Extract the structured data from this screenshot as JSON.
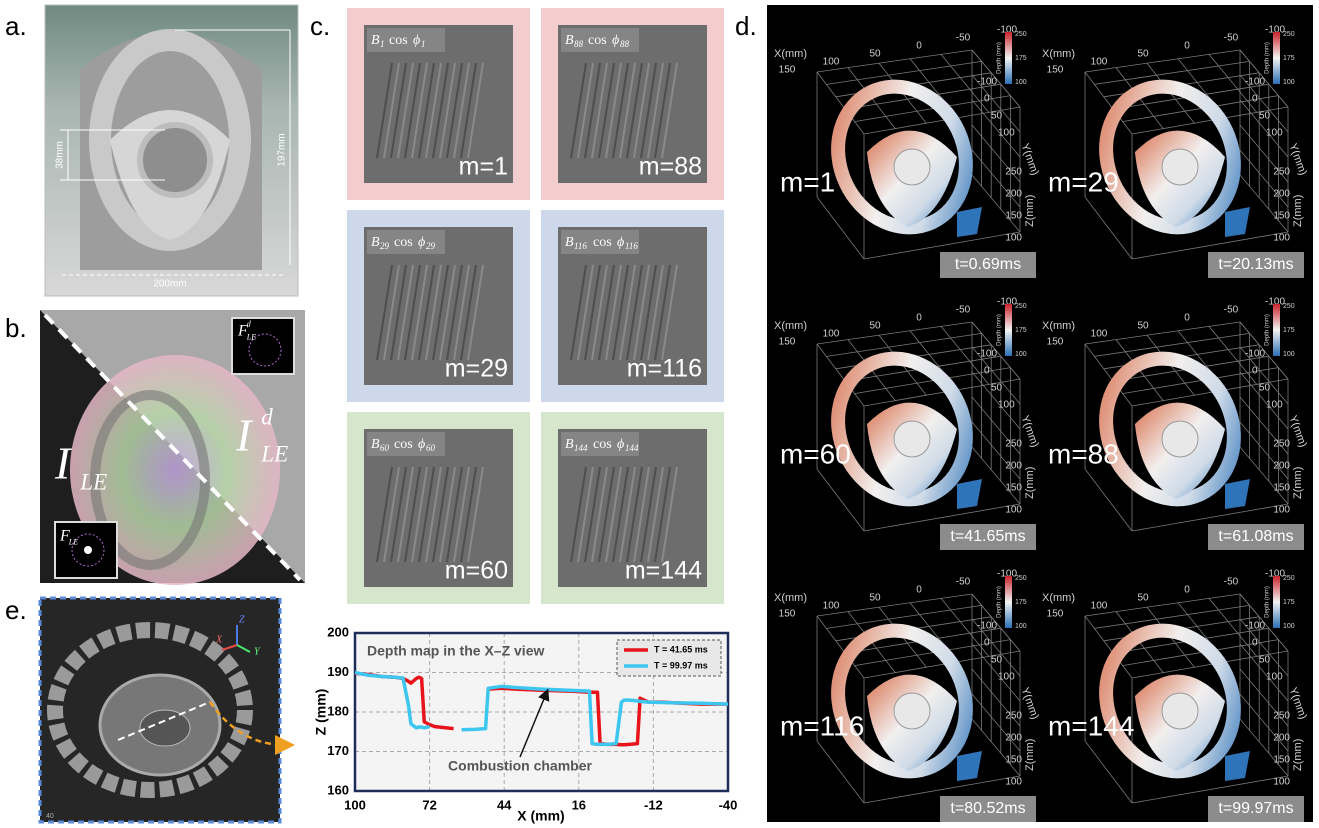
{
  "panel_labels": [
    "a.",
    "b.",
    "c.",
    "d.",
    "e."
  ],
  "a": {
    "dims": [
      "38mm",
      "197mm",
      "200mm"
    ]
  },
  "b": {
    "I_LE": {
      "base": "I",
      "sub": "LE"
    },
    "I_LE_d": {
      "base": "I",
      "sub": "LE",
      "sup": "d"
    },
    "F_LE": {
      "base": "F",
      "sub": "LE"
    },
    "F_LE_d": {
      "base": "F",
      "sub": "LE",
      "sup": "d"
    }
  },
  "c": {
    "b": "B",
    "cos": "cos",
    "phi": "ϕ",
    "tiles": [
      {
        "index": "1",
        "m": "m=1",
        "color": "#f3cdcd"
      },
      {
        "index": "88",
        "m": "m=88",
        "color": "#f3cdcd"
      },
      {
        "index": "29",
        "m": "m=29",
        "color": "#cdd8ea"
      },
      {
        "index": "116",
        "m": "m=116",
        "color": "#cdd8ea"
      },
      {
        "index": "60",
        "m": "m=60",
        "color": "#d5e6cd"
      },
      {
        "index": "144",
        "m": "m=144",
        "color": "#d5e6cd"
      }
    ]
  },
  "d": {
    "x_label": "X(mm)",
    "y_label": "Y(mm)",
    "z_label": "Z(mm)",
    "x_ticks": [
      "150",
      "100",
      "50",
      "0",
      "-50",
      "-100"
    ],
    "y_ticks": [
      "-100",
      "0",
      "50",
      "100"
    ],
    "z_ticks": [
      "250",
      "200",
      "150",
      "100"
    ],
    "colorbar": {
      "label": "Depth (mm)",
      "ticks": [
        "250",
        "175",
        "100"
      ]
    },
    "plots": [
      {
        "m": "m=1",
        "t": "t=0.69ms"
      },
      {
        "m": "m=29",
        "t": "t=20.13ms"
      },
      {
        "m": "m=60",
        "t": "t=41.65ms"
      },
      {
        "m": "m=88",
        "t": "t=61.08ms"
      },
      {
        "m": "m=116",
        "t": "t=80.52ms"
      },
      {
        "m": "m=144",
        "t": "t=99.97ms"
      }
    ]
  },
  "e": {
    "axes": [
      "Z",
      "X",
      "Y"
    ],
    "corner": "40"
  },
  "chart_data": {
    "type": "line",
    "title": "Depth map in the X–Z view",
    "x_label": "X (mm)",
    "y_label": "Z (mm)",
    "annotation": "Combustion chamber",
    "x": [
      100,
      95,
      90,
      85,
      82,
      80,
      79,
      77,
      76,
      75,
      74,
      72,
      70,
      66,
      63,
      60,
      55,
      51,
      50,
      45,
      40,
      30,
      20,
      12,
      11,
      9,
      8,
      5,
      2,
      0,
      -1,
      -3,
      -6,
      -7,
      -10,
      -15,
      -20,
      -30,
      -40
    ],
    "series": [
      {
        "name": "T = 41.65 ms",
        "color": "#e8141b",
        "values": [
          189.8,
          189.5,
          189,
          188.8,
          188.5,
          187.8,
          187.3,
          188.5,
          188.8,
          188.5,
          177.5,
          176.8,
          176.3,
          176,
          175.8,
          null,
          null,
          null,
          185.8,
          186,
          185.8,
          185.5,
          185.3,
          185,
          185,
          185,
          172,
          171.8,
          171.8,
          171.7,
          171.7,
          171.8,
          172,
          183.5,
          182.5,
          182.5,
          182.3,
          182,
          182
        ]
      },
      {
        "name": "T = 99.97 ms",
        "color": "#3cc6f0",
        "values": [
          190,
          189.3,
          189,
          188.8,
          188.6,
          182,
          177,
          176,
          176.2,
          176.2,
          176,
          176.3,
          null,
          null,
          null,
          175.5,
          175.6,
          175.8,
          186,
          186.5,
          186.2,
          185.8,
          185.5,
          185.3,
          172,
          171.8,
          171.8,
          171.8,
          172,
          182.5,
          183,
          183,
          182.8,
          182.7,
          182.5,
          182.4,
          182.3,
          182.2,
          182
        ]
      }
    ],
    "xlim": [
      100,
      -40
    ],
    "xticks": [
      100,
      72,
      44,
      16,
      -12,
      -40
    ],
    "ylim": [
      160,
      200
    ],
    "yticks": [
      160,
      170,
      180,
      190,
      200
    ],
    "grid": true,
    "legend": "upper right"
  }
}
